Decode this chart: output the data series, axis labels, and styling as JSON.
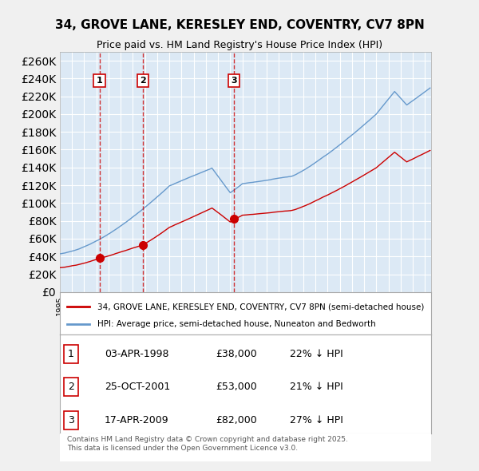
{
  "title_line1": "34, GROVE LANE, KERESLEY END, COVENTRY, CV7 8PN",
  "title_line2": "Price paid vs. HM Land Registry's House Price Index (HPI)",
  "legend_label_red": "34, GROVE LANE, KERESLEY END, COVENTRY, CV7 8PN (semi-detached house)",
  "legend_label_blue": "HPI: Average price, semi-detached house, Nuneaton and Bedworth",
  "transactions": [
    {
      "num": 1,
      "date": "03-APR-1998",
      "price": 38000,
      "pct": "22%",
      "dir": "↓"
    },
    {
      "num": 2,
      "date": "25-OCT-2001",
      "price": 53000,
      "pct": "21%",
      "dir": "↓"
    },
    {
      "num": 3,
      "date": "17-APR-2009",
      "price": 82000,
      "pct": "27%",
      "dir": "↓"
    }
  ],
  "transaction_dates_decimal": [
    1998.25,
    2001.81,
    2009.29
  ],
  "transaction_prices": [
    38000,
    53000,
    82000
  ],
  "copyright_text": "Contains HM Land Registry data © Crown copyright and database right 2025.\nThis data is licensed under the Open Government Licence v3.0.",
  "ylim": [
    0,
    270000
  ],
  "ytick_step": 20000,
  "background_color": "#dce9f5",
  "plot_bg_color": "#dce9f5",
  "grid_color": "#ffffff",
  "red_color": "#cc0000",
  "blue_color": "#6699cc",
  "vline_color": "#cc0000",
  "box_color": "#cc0000"
}
